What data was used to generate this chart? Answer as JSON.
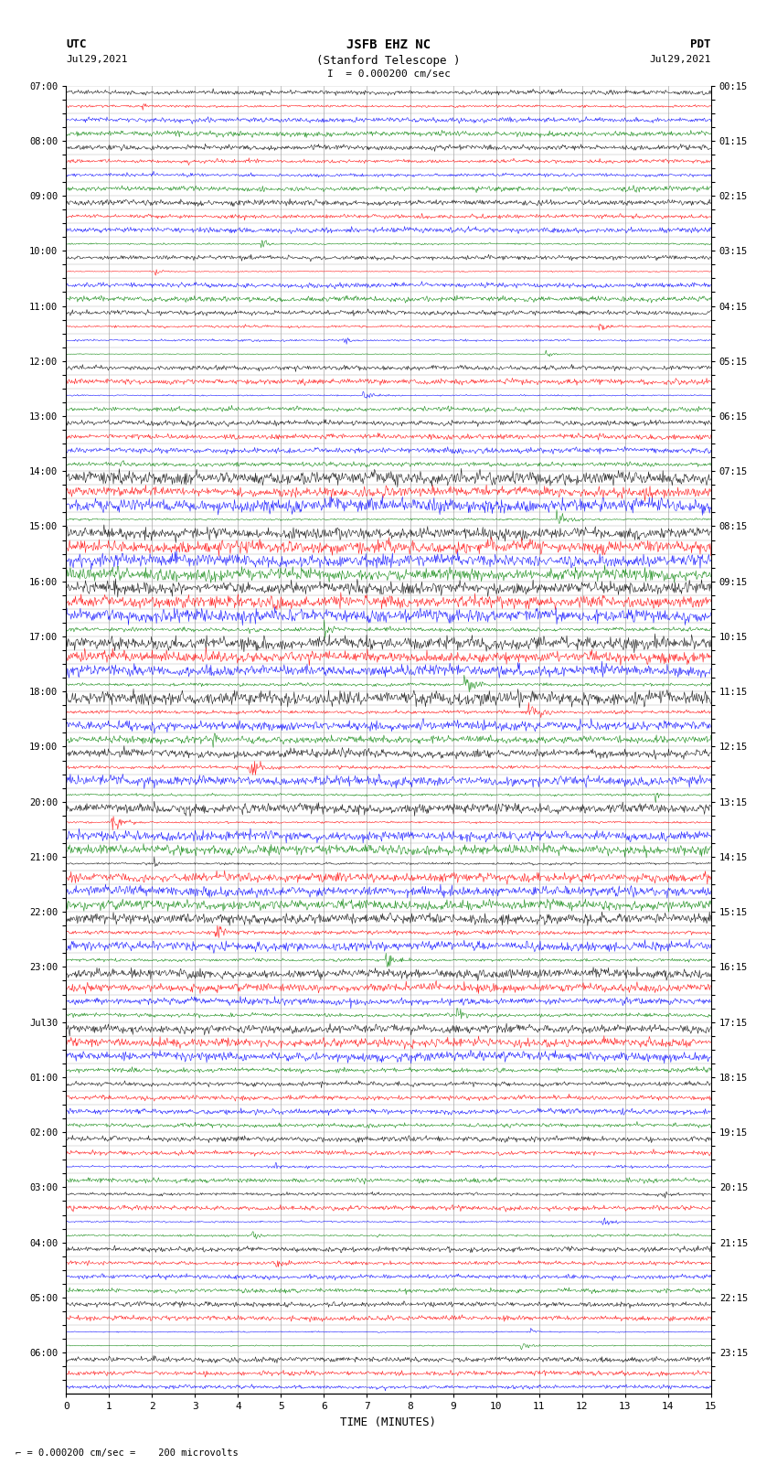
{
  "title_line1": "JSFB EHZ NC",
  "title_line2": "(Stanford Telescope )",
  "scale_label": "= 0.000200 cm/sec",
  "left_header1": "UTC",
  "left_header2": "Jul29,2021",
  "right_header1": "PDT",
  "right_header2": "Jul29,2021",
  "xlabel": "TIME (MINUTES)",
  "bottom_note": "= 0.000200 cm/sec =    200 microvolts",
  "left_times": [
    "07:00",
    "",
    "",
    "",
    "08:00",
    "",
    "",
    "",
    "09:00",
    "",
    "",
    "",
    "10:00",
    "",
    "",
    "",
    "11:00",
    "",
    "",
    "",
    "12:00",
    "",
    "",
    "",
    "13:00",
    "",
    "",
    "",
    "14:00",
    "",
    "",
    "",
    "15:00",
    "",
    "",
    "",
    "16:00",
    "",
    "",
    "",
    "17:00",
    "",
    "",
    "",
    "18:00",
    "",
    "",
    "",
    "19:00",
    "",
    "",
    "",
    "20:00",
    "",
    "",
    "",
    "21:00",
    "",
    "",
    "",
    "22:00",
    "",
    "",
    "",
    "23:00",
    "",
    "",
    "",
    "Jul30",
    "",
    "",
    "",
    "01:00",
    "",
    "",
    "",
    "02:00",
    "",
    "",
    "",
    "03:00",
    "",
    "",
    "",
    "04:00",
    "",
    "",
    "",
    "05:00",
    "",
    "",
    "",
    "06:00",
    "",
    ""
  ],
  "right_times": [
    "00:15",
    "",
    "",
    "",
    "01:15",
    "",
    "",
    "",
    "02:15",
    "",
    "",
    "",
    "03:15",
    "",
    "",
    "",
    "04:15",
    "",
    "",
    "",
    "05:15",
    "",
    "",
    "",
    "06:15",
    "",
    "",
    "",
    "07:15",
    "",
    "",
    "",
    "08:15",
    "",
    "",
    "",
    "09:15",
    "",
    "",
    "",
    "10:15",
    "",
    "",
    "",
    "11:15",
    "",
    "",
    "",
    "12:15",
    "",
    "",
    "",
    "13:15",
    "",
    "",
    "",
    "14:15",
    "",
    "",
    "",
    "15:15",
    "",
    "",
    "",
    "16:15",
    "",
    "",
    "",
    "17:15",
    "",
    "",
    "",
    "18:15",
    "",
    "",
    "",
    "19:15",
    "",
    "",
    "",
    "20:15",
    "",
    "",
    "",
    "21:15",
    "",
    "",
    "",
    "22:15",
    "",
    "",
    "",
    "23:15",
    "",
    ""
  ],
  "trace_colors": [
    "black",
    "red",
    "blue",
    "green"
  ],
  "n_traces": 95,
  "n_points": 900,
  "xmin": 0,
  "xmax": 15,
  "background_color": "#ffffff",
  "grid_color": "#aaaaaa",
  "figsize": [
    8.5,
    16.13
  ],
  "dpi": 100,
  "amplitude_base": 0.35,
  "amplitude_vary": 0.15,
  "noise_scale": 0.4
}
